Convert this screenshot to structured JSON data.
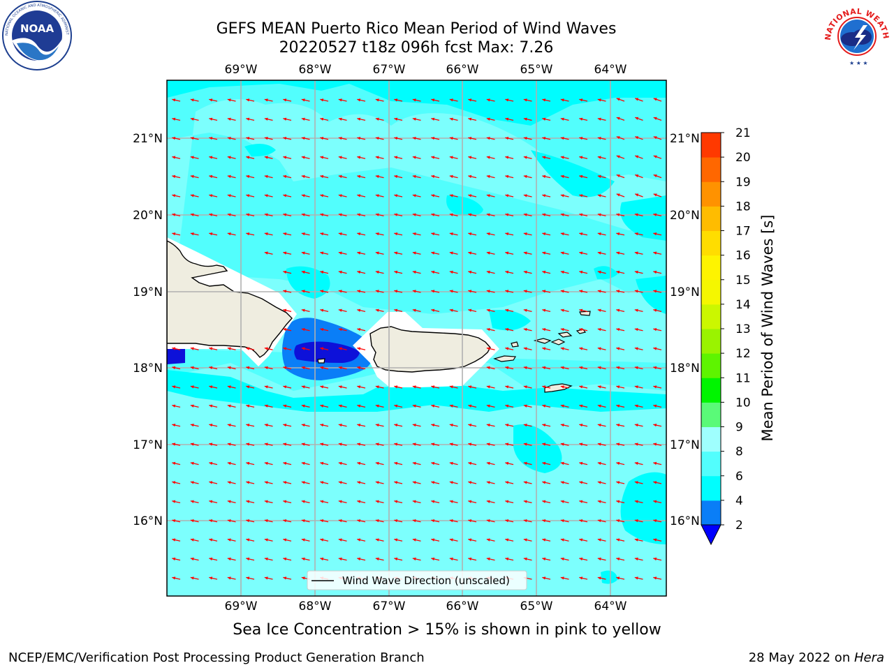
{
  "header": {
    "title_line1": "GEFS MEAN Puerto Rico Mean Period of Wind Waves",
    "title_line2": "20220527 t18z 096h fcst   Max: 7.26"
  },
  "logos": {
    "left": {
      "name": "noaa-logo",
      "text": "NOAA",
      "ring_text": "NATIONAL OCEANIC AND ATMOSPHERIC ADMINISTRATION · U.S. DEPARTMENT OF COMMERCE"
    },
    "right": {
      "name": "nws-logo",
      "ring_text": "NATIONAL WEATHER SERVICE"
    }
  },
  "map": {
    "lon_labels": [
      "69°W",
      "68°W",
      "67°W",
      "66°W",
      "65°W",
      "64°W"
    ],
    "lat_labels": [
      "21°N",
      "20°N",
      "19°N",
      "18°N",
      "17°N",
      "16°N"
    ],
    "legend_label": "Wind Wave Direction (unscaled)",
    "colors": {
      "ocean": "#52fefd",
      "ocean_light": "#9ffffe",
      "band_4_6": "#00fdfe",
      "band_2_4": "#0a7ef7",
      "deep": "#0d11d9",
      "land": "#efede0",
      "arrow": "#ff0000"
    }
  },
  "colorbar": {
    "label": "Mean Period of Wind Waves [s]",
    "ticks": [
      "2",
      "4",
      "6",
      "8",
      "9",
      "10",
      "11",
      "12",
      "13",
      "14",
      "15",
      "16",
      "17",
      "18",
      "19",
      "20",
      "21"
    ],
    "colors": [
      "#0a7ef7",
      "#00fefe",
      "#52fefd",
      "#9ffffe",
      "#5afa78",
      "#00f500",
      "#5ef400",
      "#9af300",
      "#cbf700",
      "#f5f700",
      "#fef400",
      "#ffdd00",
      "#ffbc00",
      "#ff9200",
      "#ff6700",
      "#ff3900",
      "#ff0000"
    ],
    "extend_color": "#0000ff"
  },
  "caption": "Sea Ice Concentration > 15% is shown in pink to yellow",
  "footer": {
    "left": "NCEP/EMC/Verification Post Processing Product Generation Branch",
    "right_prefix": "28 May 2022 on ",
    "right_italic": "Hera"
  }
}
